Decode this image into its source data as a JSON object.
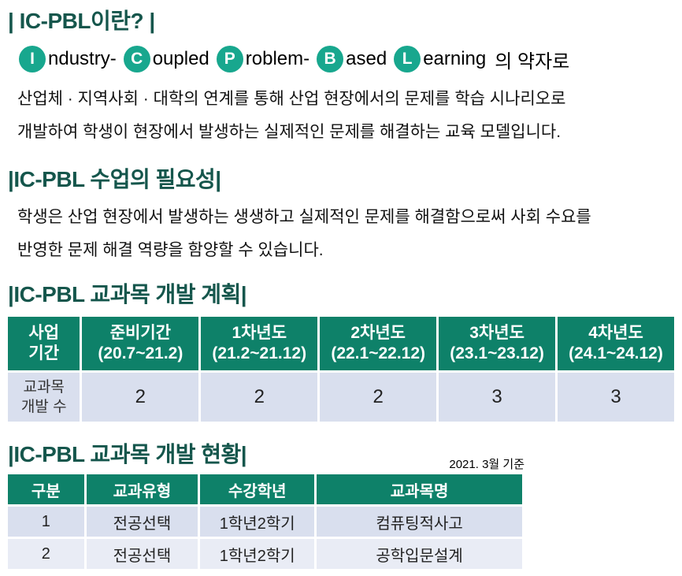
{
  "colors": {
    "title_teal": "#15564C",
    "circle_teal": "#18A78E",
    "table_header_green": "#0E8169",
    "row_light": "#D9DFEE",
    "row_lighter": "#E9ECF5",
    "text": "#111111"
  },
  "sections": {
    "intro": {
      "title": "| IC-PBL이란? |",
      "acronym": [
        {
          "letter": "I",
          "rest": "ndustry-"
        },
        {
          "letter": "C",
          "rest": "oupled"
        },
        {
          "letter": "P",
          "rest": "roblem-"
        },
        {
          "letter": "B",
          "rest": "ased"
        },
        {
          "letter": "L",
          "rest": "earning"
        }
      ],
      "acronym_suffix": "의 약자로",
      "body_line1": "산업체 · 지역사회 · 대학의 연계를 통해 산업 현장에서의 문제를 학습 시나리오로",
      "body_line2": "개발하여 학생이 현장에서 발생하는 실제적인 문제를 해결하는 교육 모델입니다."
    },
    "necessity": {
      "title": "|IC-PBL 수업의 필요성|",
      "body_line1": "학생은 산업 현장에서 발생하는 생생하고 실제적인 문제를 해결함으로써 사회 수요를",
      "body_line2": "반영한 문제 해결 역량을 함양할 수 있습니다."
    },
    "plan": {
      "title": "|IC-PBL 교과목 개발 계획|",
      "table": {
        "corner_line1": "사업",
        "corner_line2": "기간",
        "columns": [
          {
            "label": "준비기간",
            "period": "(20.7~21.2)"
          },
          {
            "label": "1차년도",
            "period": "(21.2~21.12)"
          },
          {
            "label": "2차년도",
            "period": "(22.1~22.12)"
          },
          {
            "label": "3차년도",
            "period": "(23.1~23.12)"
          },
          {
            "label": "4차년도",
            "period": "(24.1~24.12)"
          }
        ],
        "row_label_line1": "교과목",
        "row_label_line2": "개발 수",
        "values": [
          "2",
          "2",
          "2",
          "3",
          "3"
        ]
      }
    },
    "status": {
      "title": "|IC-PBL 교과목 개발 현황|",
      "as_of": "2021. 3월 기준",
      "table": {
        "headers": [
          "구분",
          "교과유형",
          "수강학년",
          "교과목명"
        ],
        "rows": [
          [
            "1",
            "전공선택",
            "1학년2학기",
            "컴퓨팅적사고"
          ],
          [
            "2",
            "전공선택",
            "1학년2학기",
            "공학입문설계"
          ]
        ]
      }
    }
  }
}
